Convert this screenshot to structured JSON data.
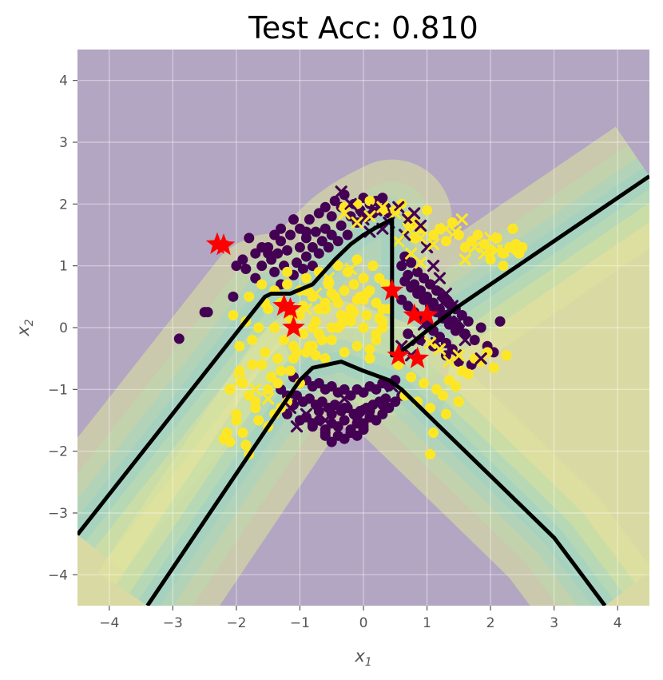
{
  "chart_data": {
    "type": "scatter",
    "title": "Test Acc: 0.810",
    "xlabel": "x1",
    "ylabel": "x2",
    "xlim": [
      -4.5,
      4.5
    ],
    "ylim": [
      -4.5,
      4.5
    ],
    "xticks": [
      -4,
      -3,
      -2,
      -1,
      0,
      1,
      2,
      3,
      4
    ],
    "yticks": [
      -4,
      -3,
      -2,
      -1,
      0,
      1,
      2,
      3,
      4
    ],
    "xtick_labels": [
      "−4",
      "−3",
      "−2",
      "−1",
      "0",
      "1",
      "2",
      "3",
      "4"
    ],
    "ytick_labels": [
      "−4",
      "−3",
      "−2",
      "−1",
      "0",
      "1",
      "2",
      "3",
      "4"
    ],
    "grid": true,
    "colors": {
      "class0": "#440154",
      "class1": "#fde725",
      "star": "#ff0000",
      "boundary": "#000000",
      "background_region": "#b2a6c2",
      "positive_region": "#dfe39d",
      "grid": "#ffffff"
    },
    "decision_boundaries": [
      {
        "x": [
          -4.5,
          -1.55,
          -1.45,
          -1.15,
          -0.8,
          -0.45,
          -0.2,
          0.0,
          0.2,
          0.45,
          0.45,
          0.5,
          0.7,
          1.0,
          1.5,
          2.0,
          3.0,
          4.5
        ],
        "y": [
          -3.35,
          0.5,
          0.55,
          0.55,
          0.7,
          1.1,
          1.35,
          1.5,
          1.62,
          1.75,
          -0.45,
          -0.45,
          -0.3,
          -0.05,
          0.35,
          0.7,
          1.4,
          2.45
        ]
      },
      {
        "x": [
          -3.4,
          -1.5,
          -1.0,
          -0.8,
          -0.35,
          0.0,
          0.4,
          0.6,
          1.2,
          2.0,
          3.0,
          3.8
        ],
        "y": [
          -4.5,
          -1.6,
          -0.85,
          -0.65,
          -0.55,
          -0.7,
          -0.85,
          -1.0,
          -1.6,
          -2.4,
          -3.4,
          -4.5
        ]
      }
    ],
    "red_stars": {
      "x": [
        -2.3,
        -2.2,
        -1.25,
        -1.15,
        -1.1,
        0.45,
        0.55,
        0.8,
        0.85,
        1.0
      ],
      "y": [
        1.35,
        1.33,
        0.35,
        0.3,
        0.0,
        0.6,
        -0.45,
        0.2,
        -0.5,
        0.2
      ]
    },
    "series": [
      {
        "marker": "circle",
        "class": 0,
        "x": [
          -2.9,
          -2.5,
          -2.45,
          -2.05,
          -2.0,
          -1.9,
          -1.85,
          -1.7,
          -1.7,
          -1.6,
          -1.5,
          -1.45,
          -1.4,
          -1.35,
          -1.3,
          -1.3,
          -1.25,
          -1.2,
          -1.15,
          -1.1,
          -1.05,
          -1.0,
          -1.0,
          -0.95,
          -0.9,
          -0.9,
          -0.85,
          -0.8,
          -0.8,
          -0.75,
          -0.7,
          -0.7,
          -0.65,
          -0.6,
          -0.6,
          -0.55,
          -0.5,
          -0.5,
          -0.45,
          -0.4,
          -0.35,
          -0.35,
          -0.3,
          -0.25,
          -0.2,
          -0.15,
          -0.1,
          -0.05,
          0.0,
          0.05,
          0.1,
          0.15,
          0.2,
          0.25,
          0.3,
          0.35,
          0.4,
          0.6,
          0.65,
          0.7,
          0.75,
          0.8,
          0.85,
          0.9,
          0.95,
          1.0,
          1.05,
          1.1,
          1.15,
          1.2,
          1.25,
          1.3,
          1.35,
          1.4,
          1.45,
          1.5,
          1.55,
          1.6,
          1.65,
          1.75,
          1.85,
          1.95,
          2.05,
          2.15,
          0.6,
          0.7,
          0.8,
          0.9,
          1.0,
          1.1,
          1.2,
          1.3,
          1.4,
          0.65,
          0.75,
          0.85,
          0.95,
          1.05,
          1.15,
          1.25,
          1.35,
          1.45,
          0.7,
          0.9,
          1.1,
          1.3,
          1.5,
          1.7,
          -1.1,
          -1.0,
          -0.9,
          -0.8,
          -0.7,
          -0.6,
          -0.5,
          -0.4,
          -0.3,
          -0.2,
          -0.1,
          0.0,
          0.1,
          0.2,
          0.3,
          0.4,
          0.5,
          -1.05,
          -0.95,
          -0.85,
          -0.75,
          -0.65,
          -0.55,
          -0.45,
          -0.35,
          -0.25,
          -0.15,
          -0.05,
          0.05,
          0.15,
          0.25,
          0.35,
          -0.9,
          -0.7,
          -0.5,
          -0.3,
          -0.1,
          0.1,
          0.3,
          -0.8,
          -0.6,
          -0.4,
          -0.2,
          0.0,
          0.2,
          -0.7,
          -0.5,
          -0.3,
          -0.1,
          0.1,
          0.3,
          -0.6,
          -0.4,
          -0.2,
          0.0,
          -1.3,
          -1.2,
          -1.1,
          0.5,
          0.6,
          0.4,
          -0.1,
          0.0,
          0.1,
          -0.3,
          -0.2,
          -0.5,
          -0.6,
          -0.8,
          -1.0,
          -1.2,
          -1.4,
          -1.6,
          -1.8,
          -1.5,
          -1.3,
          -1.1,
          -0.9
        ],
        "y": [
          -0.18,
          0.25,
          0.25,
          0.5,
          1.0,
          1.1,
          0.95,
          1.2,
          0.8,
          1.0,
          1.3,
          1.1,
          0.9,
          1.2,
          1.4,
          0.7,
          1.0,
          1.25,
          1.5,
          0.85,
          1.05,
          1.3,
          1.6,
          0.95,
          1.15,
          1.45,
          1.75,
          1.0,
          1.3,
          1.55,
          1.2,
          1.85,
          1.4,
          1.6,
          1.95,
          1.3,
          1.5,
          1.8,
          2.05,
          1.4,
          1.65,
          1.95,
          2.15,
          1.5,
          1.8,
          2.0,
          1.7,
          1.9,
          2.1,
          1.8,
          2.0,
          1.85,
          2.05,
          1.9,
          2.1,
          1.95,
          1.85,
          1.0,
          1.15,
          0.85,
          1.05,
          0.7,
          0.9,
          0.6,
          0.8,
          0.5,
          0.7,
          0.4,
          0.6,
          0.3,
          0.5,
          0.2,
          0.4,
          0.1,
          0.3,
          0.0,
          0.2,
          -0.1,
          0.1,
          -0.2,
          0.0,
          -0.3,
          -0.4,
          0.1,
          0.45,
          0.35,
          0.25,
          0.15,
          0.05,
          -0.05,
          -0.15,
          -0.25,
          -0.35,
          0.75,
          0.65,
          0.55,
          0.45,
          0.35,
          0.25,
          0.15,
          0.05,
          -0.05,
          -0.1,
          -0.2,
          -0.3,
          -0.45,
          -0.55,
          -0.6,
          -0.8,
          -0.9,
          -0.85,
          -0.95,
          -0.9,
          -1.0,
          -0.95,
          -1.05,
          -1.0,
          -1.1,
          -1.0,
          -1.05,
          -0.95,
          -1.0,
          -0.9,
          -0.95,
          -0.85,
          -1.1,
          -1.2,
          -1.15,
          -1.25,
          -1.2,
          -1.3,
          -1.25,
          -1.35,
          -1.3,
          -1.4,
          -1.35,
          -1.3,
          -1.25,
          -1.2,
          -1.15,
          -1.45,
          -1.5,
          -1.55,
          -1.5,
          -1.55,
          -1.45,
          -1.4,
          -1.6,
          -1.65,
          -1.6,
          -1.65,
          -1.55,
          -1.5,
          -1.35,
          -1.4,
          -1.3,
          -1.45,
          -1.35,
          -1.25,
          -1.7,
          -1.75,
          -1.7,
          -1.65,
          -1.0,
          -1.1,
          -1.25,
          -1.2,
          -1.1,
          -1.3,
          -1.75,
          -1.6,
          -1.45,
          -1.8,
          -1.7,
          -1.85,
          -1.75,
          -1.55,
          -1.5,
          -1.4,
          1.5,
          1.3,
          1.45,
          1.2,
          1.6,
          1.75,
          1.55
        ]
      },
      {
        "marker": "circle",
        "class": 1,
        "x": [
          -2.05,
          -1.95,
          -1.85,
          -1.75,
          -1.65,
          -1.55,
          -1.5,
          -1.45,
          -1.4,
          -1.35,
          -1.3,
          -1.25,
          -1.2,
          -1.15,
          -1.1,
          -1.05,
          -1.0,
          -0.95,
          -0.9,
          -0.85,
          -0.8,
          -0.75,
          -0.7,
          -0.65,
          -0.6,
          -0.55,
          -0.5,
          -0.45,
          -0.4,
          -0.35,
          -0.3,
          -0.25,
          -0.2,
          -0.15,
          -0.1,
          -0.05,
          0.0,
          0.05,
          0.1,
          0.15,
          0.2,
          0.25,
          0.3,
          0.35,
          -1.9,
          -1.8,
          -1.7,
          -1.6,
          -1.5,
          -1.4,
          -1.3,
          -1.2,
          -1.1,
          -1.0,
          -0.9,
          -0.8,
          -0.7,
          -0.6,
          -0.5,
          -0.4,
          -0.3,
          -0.2,
          -0.1,
          0.0,
          0.1,
          0.2,
          0.3,
          -1.8,
          -1.6,
          -1.4,
          -1.2,
          -1.0,
          -0.8,
          -0.6,
          -0.4,
          -0.2,
          0.0,
          0.2,
          0.4,
          -2.1,
          -2.0,
          -1.9,
          -1.7,
          -1.5,
          -1.3,
          -1.1,
          -0.9,
          -0.7,
          -0.5,
          -0.3,
          -0.1,
          0.1,
          0.3,
          -1.95,
          -1.75,
          -1.55,
          -1.35,
          -1.15,
          -0.95,
          -0.75,
          -0.55,
          -0.35,
          -0.15,
          0.05,
          0.25,
          -2.2,
          -2.15,
          -2.0,
          -1.85,
          -1.65,
          -1.8,
          -2.1,
          0.5,
          0.6,
          0.7,
          0.8,
          0.9,
          1.0,
          1.1,
          1.2,
          1.3,
          1.4,
          1.5,
          1.6,
          0.55,
          0.75,
          0.95,
          1.15,
          1.35,
          1.55,
          1.75,
          1.95,
          0.65,
          0.85,
          1.05,
          1.25,
          1.45,
          1.65,
          1.85,
          2.05,
          2.25,
          1.7,
          1.8,
          1.9,
          2.0,
          2.1,
          2.2,
          2.3,
          2.4,
          2.45,
          2.35,
          2.0,
          2.2,
          2.4,
          2.5,
          1.1,
          1.3,
          1.5,
          1.05,
          0.75,
          0.8,
          -0.3,
          -0.1,
          0.1,
          0.3
        ],
        "y": [
          0.2,
          -0.3,
          0.1,
          -0.6,
          0.0,
          -0.4,
          0.3,
          -0.8,
          0.0,
          -0.5,
          0.4,
          -0.2,
          0.7,
          -0.7,
          0.2,
          -0.4,
          0.6,
          -0.1,
          0.8,
          -0.3,
          0.5,
          0.1,
          0.9,
          -0.2,
          0.4,
          0.7,
          0.0,
          0.5,
          1.0,
          0.2,
          0.6,
          0.9,
          0.3,
          0.7,
          1.1,
          0.5,
          0.8,
          0.2,
          0.6,
          1.0,
          0.4,
          0.8,
          0.3,
          0.7,
          -0.9,
          -1.1,
          -1.3,
          -0.6,
          -1.0,
          -1.4,
          -0.7,
          -1.2,
          -0.5,
          -0.9,
          -0.4,
          -0.3,
          -0.1,
          -0.5,
          -0.2,
          0.0,
          -0.4,
          0.1,
          -0.3,
          0.0,
          -0.5,
          -0.2,
          0.1,
          0.5,
          0.7,
          0.6,
          0.9,
          0.2,
          0.0,
          0.3,
          0.4,
          0.2,
          0.45,
          -0.1,
          0.3,
          -1.0,
          -1.4,
          -1.7,
          -1.2,
          -1.6,
          -1.3,
          -0.3,
          0.6,
          0.3,
          0.55,
          0.15,
          0.45,
          -0.35,
          0.0,
          -0.7,
          -0.2,
          0.4,
          -0.9,
          0.15,
          0.35,
          -0.45,
          0.75,
          0.05,
          0.25,
          0.55,
          0.15,
          -1.8,
          -1.7,
          -1.5,
          -1.9,
          -1.5,
          -2.05,
          -1.85,
          1.9,
          2.0,
          1.8,
          1.7,
          1.6,
          1.9,
          1.5,
          1.6,
          1.4,
          1.7,
          1.5,
          1.3,
          -0.6,
          -0.8,
          -0.9,
          -1.0,
          -0.85,
          -0.7,
          -0.5,
          -0.4,
          -1.1,
          -1.2,
          -1.3,
          -1.1,
          -0.95,
          -0.75,
          -0.55,
          -0.65,
          -0.45,
          1.4,
          1.5,
          1.35,
          1.25,
          1.45,
          1.2,
          1.3,
          1.25,
          1.2,
          1.6,
          1.1,
          1.0,
          1.35,
          1.3,
          -1.7,
          -1.4,
          -1.2,
          -2.05,
          1.65,
          1.45,
          1.95,
          2.0,
          2.05,
          1.9
        ]
      },
      {
        "marker": "x",
        "class": 0,
        "x": [
          -0.35,
          -0.2,
          0.0,
          0.1,
          0.2,
          0.3,
          0.4,
          0.55,
          0.65,
          0.7,
          0.8,
          0.9,
          1.0,
          1.1,
          1.2,
          1.3,
          1.4,
          1.5,
          1.6,
          1.85,
          0.95,
          1.15,
          1.45,
          -1.05,
          -1.15,
          -0.9,
          -0.6,
          -0.3,
          0.05,
          0.45,
          0.6,
          0.75,
          0.85,
          1.25
        ],
        "y": [
          2.2,
          2.0,
          1.75,
          1.55,
          1.9,
          1.6,
          1.7,
          1.95,
          1.5,
          1.75,
          1.85,
          1.65,
          1.3,
          1.0,
          0.8,
          0.55,
          0.35,
          0.1,
          -0.2,
          -0.5,
          0.05,
          -0.25,
          -0.45,
          -1.6,
          -1.3,
          -1.4,
          -1.5,
          -1.15,
          -1.35,
          -0.95,
          -0.3,
          -0.45,
          -0.2,
          0.4
        ]
      },
      {
        "marker": "x",
        "class": 1,
        "x": [
          -0.3,
          -0.1,
          0.1,
          0.3,
          0.5,
          0.7,
          0.9,
          1.1,
          1.3,
          1.45,
          1.55,
          1.75,
          2.0,
          2.1,
          0.55,
          0.75,
          0.9,
          1.05,
          1.2,
          1.35,
          1.5,
          -0.75,
          -0.9,
          -0.55,
          -0.2,
          1.6,
          1.9,
          2.2,
          -1.95,
          -1.7,
          -1.5
        ],
        "y": [
          1.85,
          1.7,
          1.8,
          1.95,
          1.85,
          1.6,
          1.45,
          1.35,
          1.6,
          1.55,
          1.75,
          1.3,
          1.45,
          1.25,
          1.4,
          1.2,
          1.05,
          -0.25,
          -0.35,
          -0.55,
          -0.45,
          0.55,
          0.3,
          0.8,
          0.95,
          1.1,
          1.2,
          1.25,
          -0.85,
          -1.0,
          -1.15
        ]
      }
    ]
  }
}
